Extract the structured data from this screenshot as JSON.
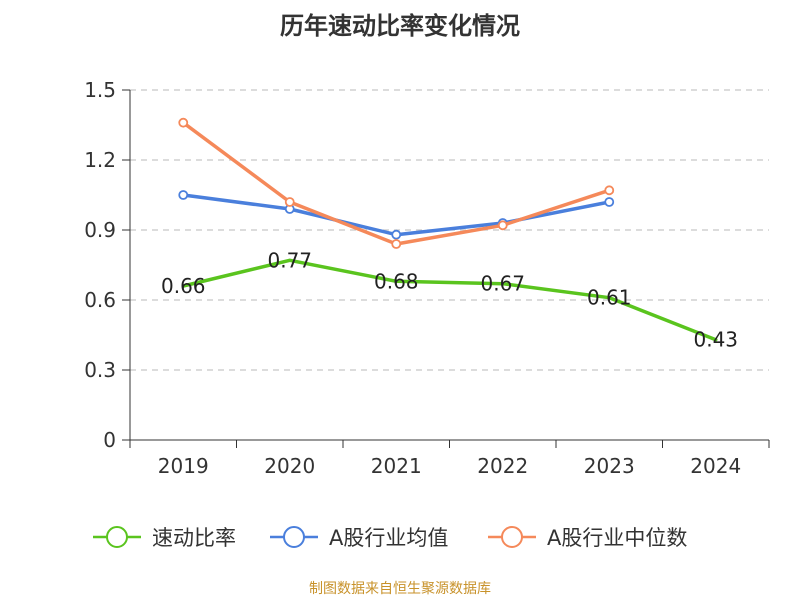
{
  "title": "历年速动比率变化情况",
  "source": "制图数据来自恒生聚源数据库",
  "chart_data": {
    "type": "line",
    "categories": [
      "2019",
      "2020",
      "2021",
      "2022",
      "2023",
      "2024"
    ],
    "ylim": [
      0,
      1.5
    ],
    "yticks": [
      "0",
      "0.3",
      "0.6",
      "0.9",
      "1.2",
      "1.5"
    ],
    "grid": true,
    "legend_position": "bottom",
    "series": [
      {
        "name": "速动比率",
        "color": "#5ac41e",
        "values": [
          0.66,
          0.77,
          0.68,
          0.67,
          0.61,
          0.43
        ],
        "labels": [
          "0.66",
          "0.77",
          "0.68",
          "0.67",
          "0.61",
          "0.43"
        ],
        "show_markers": false
      },
      {
        "name": "A股行业均值",
        "color": "#4a7fdc",
        "values": [
          1.05,
          0.99,
          0.88,
          0.93,
          1.02,
          null
        ],
        "show_markers": true
      },
      {
        "name": "A股行业中位数",
        "color": "#f5895a",
        "values": [
          1.36,
          1.02,
          0.84,
          0.92,
          1.07,
          null
        ],
        "show_markers": true
      }
    ]
  }
}
